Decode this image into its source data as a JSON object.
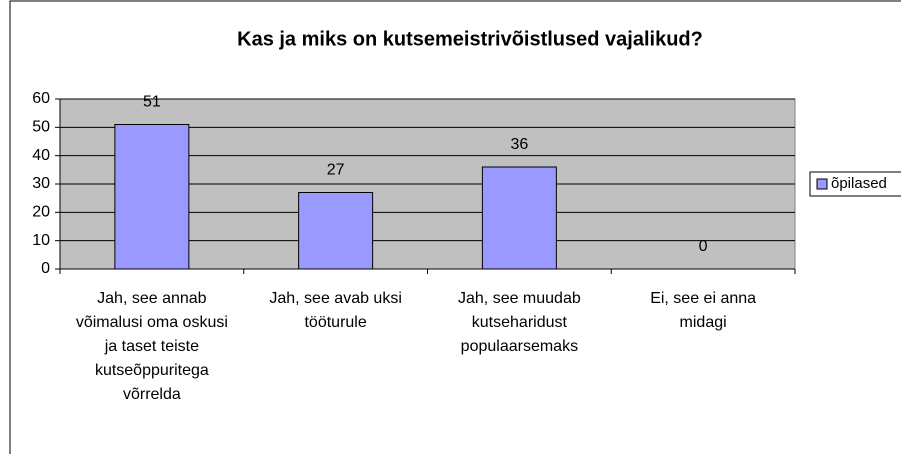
{
  "chart_data": {
    "type": "bar",
    "title": "Kas ja miks on kutsemeistrivõistlused vajalikud?",
    "categories": [
      "Jah, see annab võimalusi oma oskusi ja taset teiste kutseõppuritega võrrelda",
      "Jah, see avab uksi tööturule",
      "Jah, see muudab kutseharidust populaarsemaks",
      "Ei, see ei anna midagi"
    ],
    "series": [
      {
        "name": "õpilased",
        "color": "#9999ff",
        "values": [
          51,
          27,
          36,
          0
        ]
      }
    ],
    "ylim": [
      0,
      60
    ],
    "yticks": [
      0,
      10,
      20,
      30,
      40,
      50,
      60
    ],
    "grid": true,
    "legend": "right"
  }
}
